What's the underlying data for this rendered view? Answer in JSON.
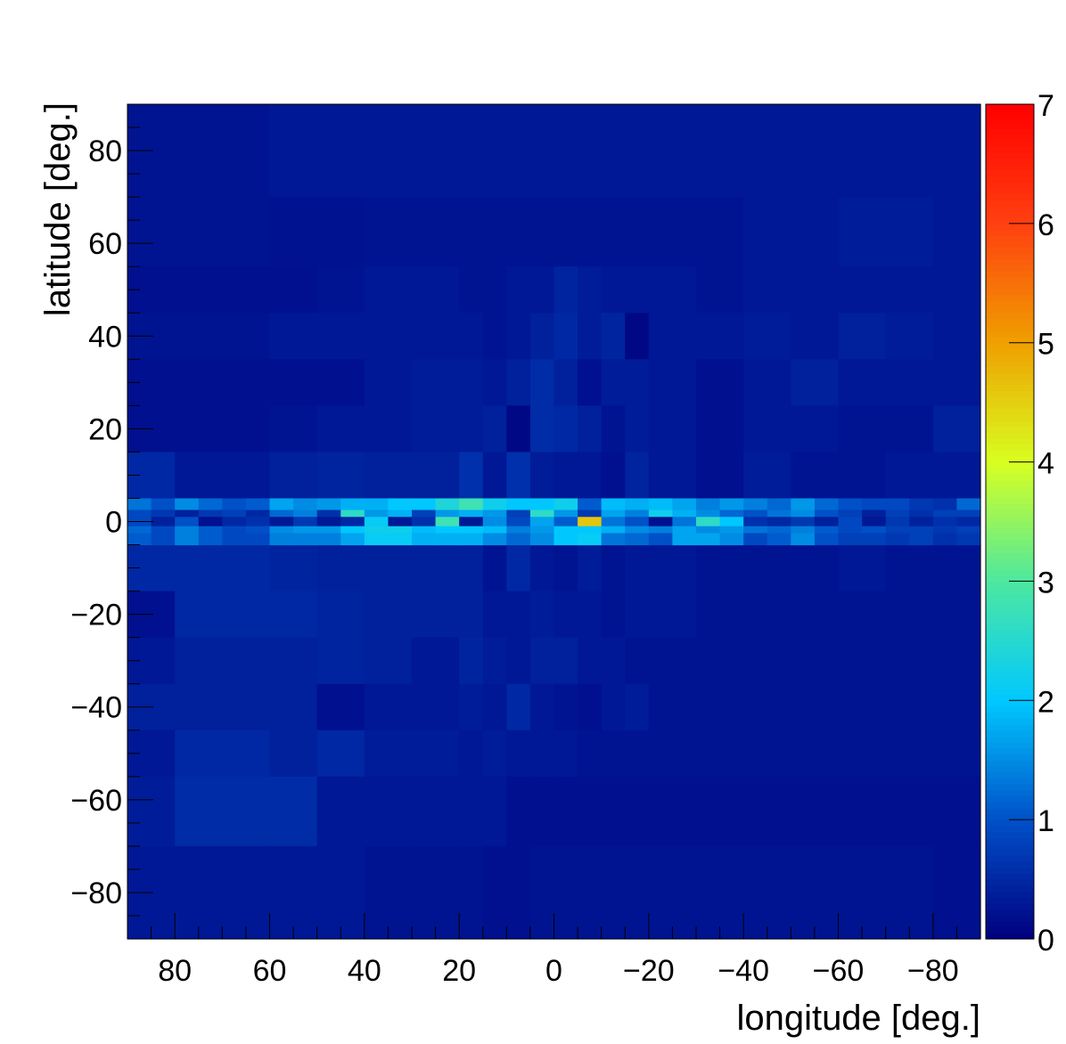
{
  "chart_data": {
    "type": "heatmap",
    "title": "",
    "xlabel": "longitude [deg.]",
    "ylabel": "latitude [deg.]",
    "xlim": [
      90,
      -90
    ],
    "ylim": [
      -90,
      90
    ],
    "zlim": [
      0,
      7
    ],
    "x_ticks": [
      80,
      60,
      40,
      20,
      0,
      -20,
      -40,
      -60,
      -80
    ],
    "x_tick_labels": [
      "80",
      "60",
      "40",
      "20",
      "0",
      "−20",
      "−40",
      "−60",
      "−80"
    ],
    "y_ticks": [
      80,
      60,
      40,
      20,
      0,
      -20,
      -40,
      -60,
      -80
    ],
    "y_tick_labels": [
      "80",
      "60",
      "40",
      "20",
      "0",
      "−20",
      "−40",
      "−60",
      "−80"
    ],
    "z_ticks": [
      0,
      1,
      2,
      3,
      4,
      5,
      6,
      7
    ],
    "z_tick_labels": [
      "0",
      "1",
      "2",
      "3",
      "4",
      "5",
      "6",
      "7"
    ],
    "colormap": "rainbow (dark blue to red)",
    "colormap_stops": [
      "#00007f",
      "#0050c8",
      "#00c8ff",
      "#4de8a0",
      "#d8ff20",
      "#f0a000",
      "#ff4010",
      "#ff0000"
    ],
    "legend": "colorbar-right",
    "grid": false,
    "cells_coarse_note": "",
    "coarse_x_edges": [
      90,
      80,
      60,
      50,
      40,
      30,
      20,
      15,
      10,
      5,
      0,
      -5,
      -10,
      -15,
      -20,
      -30,
      -40,
      -50,
      -60,
      -70,
      -80,
      -90
    ],
    "coarse_rows": [
      {
        "lat": [
          70,
          90
        ],
        "values": [
          0.25,
          0.25,
          0.3,
          0.3,
          0.3,
          0.3,
          0.3,
          0.3,
          0.3,
          0.3,
          0.3,
          0.3,
          0.3,
          0.3,
          0.3,
          0.3,
          0.3,
          0.3,
          0.3,
          0.3,
          0.3
        ]
      },
      {
        "lat": [
          55,
          70
        ],
        "values": [
          0.25,
          0.25,
          0.22,
          0.22,
          0.25,
          0.25,
          0.25,
          0.25,
          0.25,
          0.25,
          0.25,
          0.25,
          0.25,
          0.25,
          0.25,
          0.25,
          0.3,
          0.3,
          0.35,
          0.35,
          0.3
        ]
      },
      {
        "lat": [
          45,
          55
        ],
        "values": [
          0.2,
          0.2,
          0.2,
          0.25,
          0.3,
          0.3,
          0.25,
          0.25,
          0.3,
          0.3,
          0.45,
          0.35,
          0.3,
          0.3,
          0.3,
          0.25,
          0.3,
          0.3,
          0.3,
          0.3,
          0.3
        ]
      },
      {
        "lat": [
          35,
          45
        ],
        "values": [
          0.25,
          0.25,
          0.3,
          0.3,
          0.3,
          0.3,
          0.3,
          0.25,
          0.3,
          0.4,
          0.5,
          0.35,
          0.45,
          0.1,
          0.3,
          0.3,
          0.35,
          0.3,
          0.4,
          0.35,
          0.3
        ]
      },
      {
        "lat": [
          25,
          35
        ],
        "values": [
          0.2,
          0.2,
          0.2,
          0.2,
          0.3,
          0.35,
          0.35,
          0.3,
          0.4,
          0.55,
          0.4,
          0.2,
          0.35,
          0.35,
          0.3,
          0.2,
          0.3,
          0.4,
          0.3,
          0.3,
          0.3
        ]
      },
      {
        "lat": [
          15,
          25
        ],
        "values": [
          0.2,
          0.2,
          0.25,
          0.3,
          0.3,
          0.35,
          0.35,
          0.4,
          0.1,
          0.55,
          0.5,
          0.4,
          0.25,
          0.35,
          0.3,
          0.2,
          0.3,
          0.3,
          0.25,
          0.25,
          0.4
        ]
      },
      {
        "lat": [
          5,
          15
        ],
        "values": [
          0.5,
          0.3,
          0.4,
          0.45,
          0.4,
          0.4,
          0.6,
          0.3,
          0.6,
          0.35,
          0.3,
          0.3,
          0.2,
          0.45,
          0.3,
          0.2,
          0.35,
          0.25,
          0.25,
          0.3,
          0.3
        ]
      },
      {
        "lat": [
          -15,
          -5
        ],
        "values": [
          0.5,
          0.5,
          0.45,
          0.4,
          0.4,
          0.4,
          0.4,
          0.25,
          0.5,
          0.3,
          0.25,
          0.35,
          0.25,
          0.3,
          0.3,
          0.25,
          0.25,
          0.25,
          0.3,
          0.25,
          0.25
        ]
      },
      {
        "lat": [
          -25,
          -15
        ],
        "values": [
          0.2,
          0.5,
          0.5,
          0.45,
          0.4,
          0.4,
          0.4,
          0.3,
          0.3,
          0.35,
          0.3,
          0.3,
          0.25,
          0.3,
          0.3,
          0.25,
          0.25,
          0.25,
          0.25,
          0.25,
          0.25
        ]
      },
      {
        "lat": [
          -35,
          -25
        ],
        "values": [
          0.3,
          0.4,
          0.4,
          0.45,
          0.4,
          0.3,
          0.45,
          0.35,
          0.3,
          0.4,
          0.4,
          0.3,
          0.3,
          0.25,
          0.25,
          0.25,
          0.25,
          0.25,
          0.25,
          0.25,
          0.25
        ]
      },
      {
        "lat": [
          -45,
          -35
        ],
        "values": [
          0.4,
          0.4,
          0.4,
          0.2,
          0.3,
          0.3,
          0.35,
          0.3,
          0.5,
          0.3,
          0.25,
          0.2,
          0.3,
          0.35,
          0.25,
          0.25,
          0.25,
          0.25,
          0.25,
          0.25,
          0.25
        ]
      },
      {
        "lat": [
          -55,
          -45
        ],
        "values": [
          0.3,
          0.5,
          0.4,
          0.5,
          0.35,
          0.35,
          0.3,
          0.35,
          0.3,
          0.3,
          0.3,
          0.25,
          0.25,
          0.25,
          0.25,
          0.25,
          0.25,
          0.25,
          0.25,
          0.25,
          0.25
        ]
      },
      {
        "lat": [
          -70,
          -55
        ],
        "values": [
          0.35,
          0.55,
          0.55,
          0.3,
          0.3,
          0.3,
          0.3,
          0.3,
          0.2,
          0.2,
          0.2,
          0.2,
          0.2,
          0.2,
          0.2,
          0.2,
          0.2,
          0.2,
          0.2,
          0.2,
          0.2
        ]
      },
      {
        "lat": [
          -90,
          -70
        ],
        "values": [
          0.3,
          0.3,
          0.3,
          0.3,
          0.25,
          0.25,
          0.25,
          0.2,
          0.2,
          0.25,
          0.25,
          0.25,
          0.25,
          0.25,
          0.25,
          0.25,
          0.25,
          0.25,
          0.25,
          0.25,
          0.2
        ]
      }
    ],
    "fine_x_edges": [
      90,
      85,
      80,
      75,
      70,
      65,
      60,
      55,
      50,
      45,
      40,
      35,
      30,
      25,
      20,
      15,
      10,
      5,
      0,
      -5,
      -10,
      -15,
      -20,
      -25,
      -30,
      -35,
      -40,
      -45,
      -50,
      -55,
      -60,
      -65,
      -70,
      -75,
      -80,
      -85,
      -90
    ],
    "fine_rows": [
      {
        "lat": [
          2.5,
          5
        ],
        "values": [
          1.3,
          1.0,
          1.5,
          1.2,
          1.0,
          1.1,
          1.7,
          1.5,
          1.6,
          1.8,
          1.8,
          2.0,
          2.0,
          2.4,
          2.8,
          2.2,
          2.0,
          2.0,
          2.2,
          1.1,
          1.9,
          1.8,
          1.9,
          1.7,
          1.4,
          1.6,
          1.4,
          1.2,
          1.6,
          1.2,
          1.0,
          0.9,
          0.9,
          0.7,
          0.6,
          1.2
        ]
      },
      {
        "lat": [
          1,
          2.5
        ],
        "values": [
          0.9,
          0.7,
          0.4,
          0.7,
          0.8,
          0.5,
          1.2,
          1.4,
          0.6,
          2.6,
          1.6,
          1.8,
          0.8,
          1.6,
          1.8,
          1.6,
          0.8,
          2.6,
          1.6,
          0.7,
          1.7,
          1.4,
          2.2,
          1.8,
          1.5,
          1.2,
          1.0,
          1.3,
          1.5,
          1.0,
          0.8,
          0.4,
          0.8,
          0.6,
          0.8,
          0.8
        ]
      },
      {
        "lat": [
          -1,
          1
        ],
        "values": [
          0.9,
          0.4,
          1.0,
          0.2,
          0.5,
          0.6,
          0.3,
          0.7,
          0.3,
          0.5,
          2.1,
          0.3,
          0.6,
          2.8,
          0.3,
          1.5,
          0.9,
          1.7,
          1.1,
          4.6,
          1.3,
          1.0,
          0.2,
          1.3,
          2.6,
          2.0,
          0.6,
          0.5,
          0.7,
          0.4,
          0.9,
          0.3,
          0.7,
          0.4,
          0.6,
          0.5
        ]
      },
      {
        "lat": [
          -2.5,
          -1
        ],
        "values": [
          1.2,
          0.9,
          1.4,
          1.1,
          0.9,
          1.0,
          1.5,
          1.6,
          1.6,
          2.0,
          2.2,
          2.2,
          1.9,
          2.0,
          2.0,
          1.9,
          1.4,
          1.6,
          2.0,
          2.0,
          1.8,
          1.5,
          1.4,
          1.7,
          1.5,
          1.6,
          1.3,
          1.2,
          1.4,
          1.1,
          0.9,
          1.0,
          0.8,
          0.8,
          0.7,
          0.8
        ]
      },
      {
        "lat": [
          -5,
          -2.5
        ],
        "values": [
          1.1,
          0.9,
          1.4,
          1.1,
          0.9,
          0.9,
          1.4,
          1.4,
          1.4,
          1.7,
          2.1,
          2.1,
          1.8,
          1.8,
          1.8,
          1.5,
          1.2,
          1.5,
          2.0,
          2.1,
          1.3,
          1.2,
          1.0,
          1.7,
          1.7,
          1.5,
          0.9,
          1.1,
          1.5,
          1.0,
          0.8,
          0.8,
          0.7,
          0.8,
          0.6,
          0.7
        ]
      }
    ]
  }
}
